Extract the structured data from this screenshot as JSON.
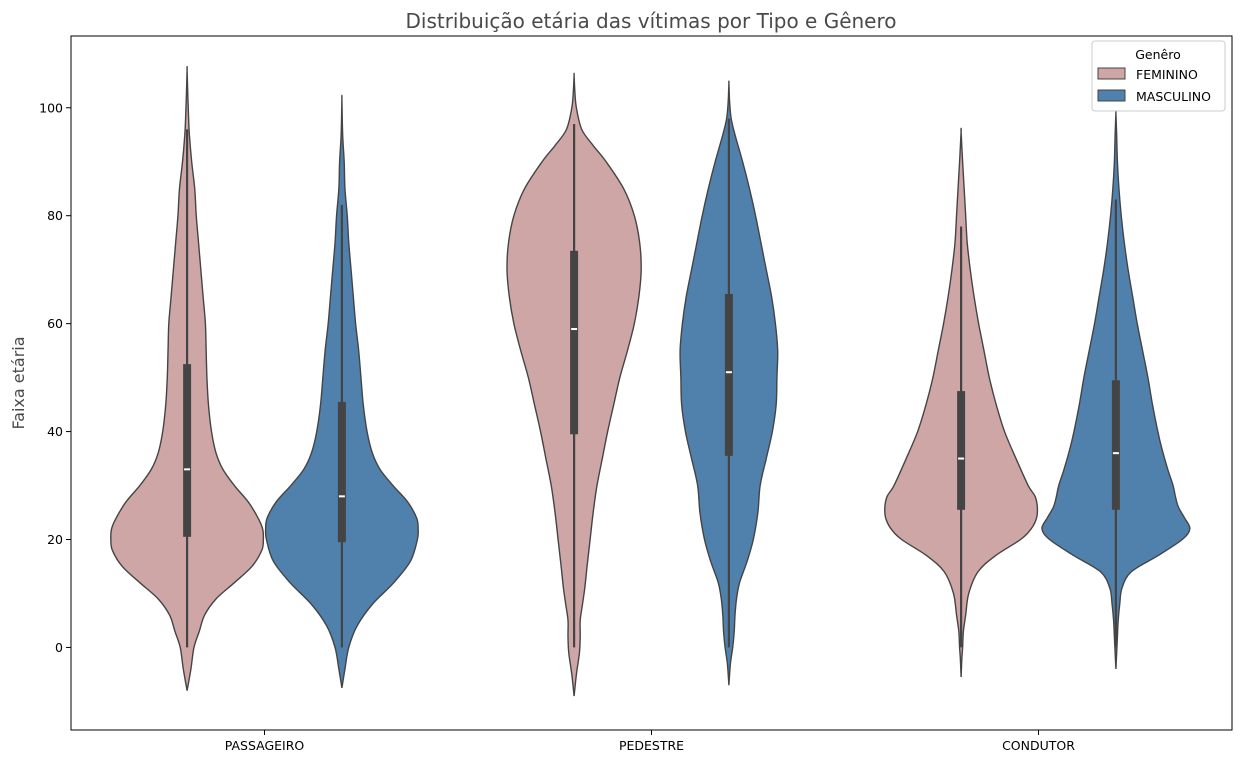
{
  "chart_data": {
    "type": "violin",
    "title": "Distribuição etária das vítimas por Tipo e Gênero",
    "xlabel": "",
    "ylabel": "Faixa etária",
    "categories": [
      "PASSAGEIRO",
      "PEDESTRE",
      "CONDUTOR"
    ],
    "yticks": [
      0,
      20,
      40,
      60,
      80,
      100
    ],
    "ylim": [
      -15.3,
      113.3
    ],
    "grid": false,
    "legend": {
      "title": "Genêro",
      "placement": "top-right",
      "entries": [
        {
          "name": "FEMININO",
          "color": "#cfa6a6"
        },
        {
          "name": "MASCULINO",
          "color": "#4f81ac"
        }
      ]
    },
    "series": [
      {
        "name": "FEMININO",
        "color": "#cfa6a6",
        "violins": [
          {
            "category": "PASSAGEIRO",
            "density_y": [
              -8,
              -4,
              0,
              3,
              6,
              9,
              12,
              15,
              18,
              20,
              22,
              24,
              27,
              30,
              33,
              36,
              40,
              45,
              50,
              55,
              60,
              65,
              70,
              75,
              80,
              85,
              90,
              95,
              98,
              102,
              107
            ],
            "density_w": [
              0.0,
              0.05,
              0.09,
              0.16,
              0.23,
              0.38,
              0.62,
              0.85,
              0.98,
              1.0,
              0.99,
              0.93,
              0.8,
              0.62,
              0.47,
              0.38,
              0.32,
              0.28,
              0.26,
              0.25,
              0.24,
              0.21,
              0.18,
              0.15,
              0.12,
              0.1,
              0.06,
              0.03,
              0.02,
              0.01,
              0.0
            ],
            "whisker": [
              0,
              96
            ],
            "q1": 20.5,
            "median": 33,
            "q3": 52.5
          },
          {
            "category": "PEDESTRE",
            "density_y": [
              -9,
              -5,
              -1,
              2,
              5,
              8,
              11,
              15,
              20,
              25,
              30,
              35,
              40,
              45,
              50,
              55,
              60,
              65,
              70,
              75,
              80,
              85,
              90,
              93,
              96,
              100,
              103,
              106
            ],
            "density_w": [
              0.0,
              0.03,
              0.07,
              0.08,
              0.08,
              0.11,
              0.14,
              0.17,
              0.21,
              0.25,
              0.3,
              0.37,
              0.44,
              0.52,
              0.6,
              0.7,
              0.79,
              0.85,
              0.88,
              0.86,
              0.79,
              0.65,
              0.42,
              0.25,
              0.1,
              0.03,
              0.01,
              0.0
            ],
            "whisker": [
              0,
              97
            ],
            "q1": 39.5,
            "median": 59,
            "q3": 73.5
          },
          {
            "category": "CONDUTOR",
            "density_y": [
              -5.5,
              -2,
              0,
              3,
              6,
              10,
              14,
              17,
              20,
              22,
              24,
              26,
              28,
              30,
              35,
              40,
              45,
              50,
              55,
              60,
              65,
              70,
              75,
              80,
              85,
              90,
              95.5
            ],
            "density_w": [
              0.0,
              0.01,
              0.02,
              0.03,
              0.06,
              0.1,
              0.22,
              0.45,
              0.78,
              0.92,
              0.99,
              1.0,
              0.97,
              0.88,
              0.72,
              0.57,
              0.46,
              0.37,
              0.3,
              0.23,
              0.17,
              0.12,
              0.08,
              0.06,
              0.04,
              0.02,
              0.0
            ],
            "whisker": [
              0,
              78
            ],
            "q1": 25.5,
            "median": 35,
            "q3": 47.5
          }
        ]
      },
      {
        "name": "MASCULINO",
        "color": "#4f81ac",
        "violins": [
          {
            "category": "PASSAGEIRO",
            "density_y": [
              -7.5,
              -4,
              0,
              4,
              8,
              12,
              16,
              20,
              22,
              24,
              27,
              30,
              33,
              36,
              40,
              45,
              50,
              55,
              60,
              65,
              70,
              75,
              80,
              85,
              90,
              95,
              101.5
            ],
            "density_w": [
              0.0,
              0.04,
              0.09,
              0.2,
              0.4,
              0.68,
              0.9,
              0.99,
              1.0,
              0.98,
              0.86,
              0.67,
              0.5,
              0.4,
              0.33,
              0.28,
              0.25,
              0.22,
              0.18,
              0.15,
              0.12,
              0.09,
              0.07,
              0.04,
              0.03,
              0.01,
              0.0
            ],
            "whisker": [
              0,
              82
            ],
            "q1": 19.5,
            "median": 28,
            "q3": 45.5
          },
          {
            "category": "PEDESTRE",
            "density_y": [
              -7,
              -3,
              0,
              3,
              6,
              9,
              12,
              16,
              20,
              25,
              30,
              35,
              40,
              45,
              50,
              55,
              60,
              65,
              70,
              75,
              80,
              85,
              90,
              95,
              98,
              101,
              104.5
            ],
            "density_w": [
              0.0,
              0.02,
              0.05,
              0.07,
              0.08,
              0.1,
              0.14,
              0.24,
              0.32,
              0.38,
              0.41,
              0.49,
              0.57,
              0.62,
              0.63,
              0.64,
              0.61,
              0.56,
              0.49,
              0.42,
              0.35,
              0.27,
              0.18,
              0.08,
              0.03,
              0.01,
              0.0
            ],
            "whisker": [
              0,
              98
            ],
            "q1": 35.5,
            "median": 51,
            "q3": 65.5
          },
          {
            "category": "CONDUTOR",
            "density_y": [
              -4,
              -1,
              2,
              5,
              8,
              11,
              14,
              17,
              20,
              22,
              24,
              26,
              28,
              30,
              33,
              37,
              40,
              45,
              50,
              55,
              60,
              65,
              70,
              75,
              80,
              85,
              90,
              95,
              99
            ],
            "density_w": [
              0.0,
              0.01,
              0.02,
              0.03,
              0.05,
              0.08,
              0.2,
              0.55,
              0.87,
              0.97,
              0.9,
              0.82,
              0.78,
              0.75,
              0.68,
              0.6,
              0.55,
              0.48,
              0.42,
              0.35,
              0.28,
              0.22,
              0.16,
              0.11,
              0.07,
              0.04,
              0.02,
              0.01,
              0.0
            ],
            "whisker": [
              0,
              83
            ],
            "q1": 25.5,
            "median": 36,
            "q3": 49.5
          }
        ]
      }
    ]
  }
}
